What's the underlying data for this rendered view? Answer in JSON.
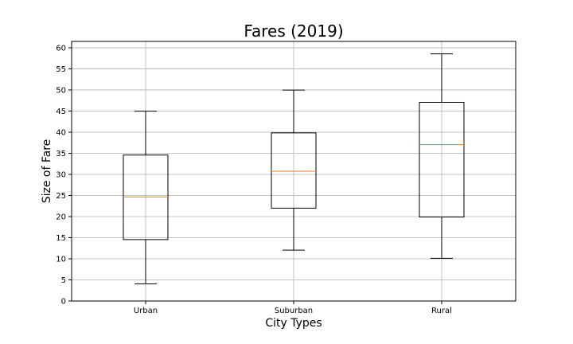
{
  "chart_data": {
    "type": "box",
    "title": "Fares (2019)",
    "xlabel": "City Types",
    "ylabel": "Size of Fare",
    "categories": [
      "Urban",
      "Suburban",
      "Rural"
    ],
    "boxes": [
      {
        "category": "Urban",
        "whisker_low": 4.05,
        "q1": 14.55,
        "median": 24.64,
        "q3": 34.58,
        "whisker_high": 44.97
      },
      {
        "category": "Suburban",
        "whisker_low": 12.05,
        "q1": 22.0,
        "median": 30.75,
        "q3": 39.83,
        "whisker_high": 49.96
      },
      {
        "category": "Rural",
        "whisker_low": 10.11,
        "q1": 19.9,
        "median": 37.05,
        "q3": 47.07,
        "whisker_high": 58.55
      }
    ],
    "ylim": [
      0,
      61.5
    ],
    "yticks": [
      0,
      5,
      10,
      15,
      20,
      25,
      30,
      35,
      40,
      45,
      50,
      55,
      60
    ],
    "grid": true,
    "colors": {
      "box": "#000000",
      "median": "#ff7f0e",
      "grid": "#b0b0b0"
    }
  }
}
